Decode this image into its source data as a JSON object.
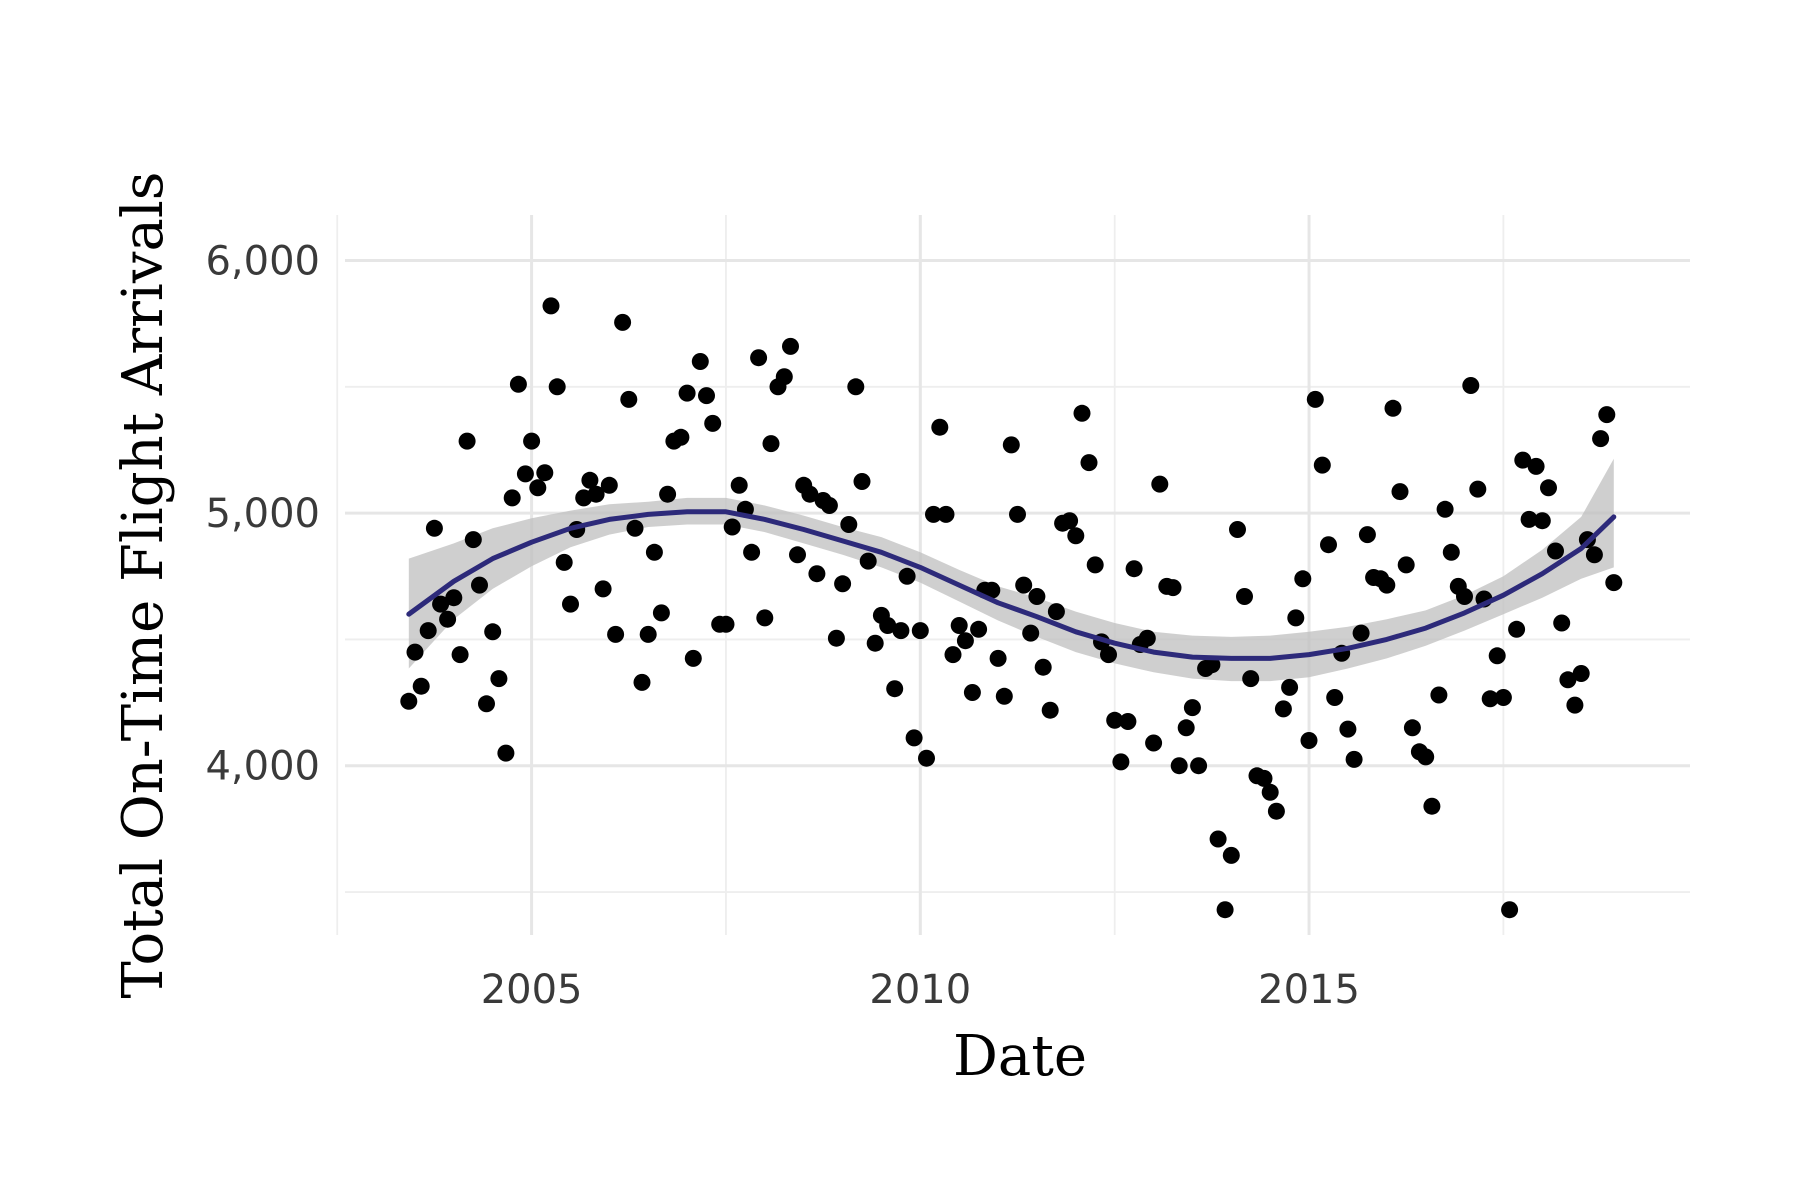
{
  "chart_data": {
    "type": "scatter",
    "xlabel": "Date",
    "ylabel": "Total On-Time Flight Arrivals",
    "x_ticks": [
      2005,
      2010,
      2015
    ],
    "y_ticks": [
      "4,000",
      "5,000",
      "6,000"
    ],
    "xlim": [
      2002.6,
      2019.9
    ],
    "ylim": [
      3330,
      6180
    ],
    "grid": true,
    "legend": "none",
    "colors": {
      "points": "#000000",
      "trend": "#2d2a7a",
      "band": "#bfbfbf"
    },
    "points": {
      "x": [
        2003.42,
        2003.5,
        2003.58,
        2003.67,
        2003.75,
        2003.83,
        2003.92,
        2004.0,
        2004.08,
        2004.17,
        2004.25,
        2004.33,
        2004.42,
        2004.5,
        2004.58,
        2004.67,
        2004.75,
        2004.83,
        2004.92,
        2005.0,
        2005.08,
        2005.17,
        2005.25,
        2005.33,
        2005.42,
        2005.5,
        2005.58,
        2005.67,
        2005.75,
        2005.83,
        2005.92,
        2006.0,
        2006.08,
        2006.17,
        2006.25,
        2006.33,
        2006.42,
        2006.5,
        2006.58,
        2006.67,
        2006.75,
        2006.83,
        2006.92,
        2007.0,
        2007.08,
        2007.17,
        2007.25,
        2007.33,
        2007.42,
        2007.5,
        2007.58,
        2007.67,
        2007.75,
        2007.83,
        2007.92,
        2008.0,
        2008.08,
        2008.17,
        2008.25,
        2008.33,
        2008.42,
        2008.5,
        2008.58,
        2008.67,
        2008.75,
        2008.83,
        2008.92,
        2009.0,
        2009.08,
        2009.17,
        2009.25,
        2009.33,
        2009.42,
        2009.5,
        2009.58,
        2009.67,
        2009.75,
        2009.83,
        2009.92,
        2010.0,
        2010.08,
        2010.17,
        2010.25,
        2010.33,
        2010.42,
        2010.5,
        2010.58,
        2010.67,
        2010.75,
        2010.83,
        2010.92,
        2011.0,
        2011.08,
        2011.17,
        2011.25,
        2011.33,
        2011.42,
        2011.5,
        2011.58,
        2011.67,
        2011.75,
        2011.83,
        2011.92,
        2012.0,
        2012.08,
        2012.17,
        2012.25,
        2012.33,
        2012.42,
        2012.5,
        2012.58,
        2012.67,
        2012.75,
        2012.83,
        2012.92,
        2013.0,
        2013.08,
        2013.17,
        2013.25,
        2013.33,
        2013.42,
        2013.5,
        2013.58,
        2013.67,
        2013.75,
        2013.83,
        2013.92,
        2014.0,
        2014.08,
        2014.17,
        2014.25,
        2014.33,
        2014.42,
        2014.5,
        2014.58,
        2014.67,
        2014.75,
        2014.83,
        2014.92,
        2015.0,
        2015.08,
        2015.17,
        2015.25,
        2015.33,
        2015.42,
        2015.5,
        2015.58,
        2015.67,
        2015.75,
        2015.83,
        2015.92,
        2016.0,
        2016.08,
        2016.17,
        2016.25,
        2016.33,
        2016.42,
        2016.5,
        2016.58,
        2016.67,
        2016.75,
        2016.83,
        2016.92,
        2017.0,
        2017.08,
        2017.17,
        2017.25,
        2017.33,
        2017.42,
        2017.5,
        2017.58,
        2017.67,
        2017.75,
        2017.83,
        2017.92,
        2018.0,
        2018.08,
        2018.17,
        2018.25,
        2018.33,
        2018.42,
        2018.5,
        2018.58,
        2018.67,
        2018.75,
        2018.83,
        2018.92
      ],
      "y": [
        4255,
        4450,
        4315,
        4535,
        4940,
        4640,
        4580,
        4665,
        4440,
        5285,
        4895,
        4715,
        4245,
        4530,
        4345,
        4050,
        5060,
        5510,
        5155,
        5285,
        5100,
        5160,
        5820,
        5500,
        4805,
        4640,
        4935,
        5060,
        5130,
        5075,
        4700,
        5110,
        4520,
        5755,
        5450,
        4940,
        4330,
        4520,
        4845,
        4605,
        5075,
        5285,
        5300,
        5475,
        4425,
        5600,
        5465,
        5355,
        4560,
        4560,
        4945,
        5110,
        5015,
        4845,
        5615,
        4585,
        5275,
        5500,
        5540,
        5660,
        4835,
        5110,
        5075,
        4760,
        5050,
        5030,
        4505,
        4720,
        4955,
        5500,
        5125,
        4810,
        4485,
        4595,
        4555,
        4305,
        4535,
        4750,
        4110,
        4535,
        4030,
        4995,
        5340,
        4995,
        4440,
        4555,
        4495,
        4290,
        4540,
        4695,
        4695,
        4425,
        4275,
        5270,
        4995,
        4715,
        4525,
        4670,
        4390,
        4220,
        4610,
        4960,
        4970,
        4910,
        5395,
        5200,
        4795,
        4490,
        4440,
        4180,
        4015,
        4175,
        4780,
        4480,
        4505,
        4090,
        5115,
        4710,
        4705,
        4000,
        4150,
        4230,
        4000,
        4385,
        4400,
        3710,
        3430,
        3645,
        4935,
        4670,
        4345,
        3960,
        3950,
        3895,
        3820,
        4225,
        4310,
        4585,
        4740,
        4100,
        5450,
        5190,
        4875,
        4270,
        4445,
        4145,
        4025,
        4525,
        4915,
        4745,
        4740,
        4715,
        5415,
        5085,
        4795,
        4150,
        4055,
        4035,
        3840,
        4280,
        5015,
        4845,
        4710,
        4670,
        5505,
        5095,
        4660,
        4265,
        4435,
        4270,
        3430,
        4540,
        5210,
        4975,
        5185,
        4970,
        5100,
        4850,
        4565,
        4340,
        4240,
        4365,
        4895,
        4835,
        5295,
        5390,
        4725
      ]
    },
    "trend_line": {
      "x": [
        2003.42,
        2004.0,
        2004.5,
        2005.0,
        2005.5,
        2006.0,
        2006.5,
        2007.0,
        2007.5,
        2008.0,
        2008.5,
        2009.0,
        2009.5,
        2010.0,
        2010.5,
        2011.0,
        2011.5,
        2012.0,
        2012.5,
        2013.0,
        2013.5,
        2014.0,
        2014.5,
        2015.0,
        2015.5,
        2016.0,
        2016.5,
        2017.0,
        2017.5,
        2018.0,
        2018.5,
        2018.92
      ],
      "y": [
        4600,
        4730,
        4820,
        4885,
        4940,
        4975,
        4995,
        5005,
        5005,
        4975,
        4935,
        4890,
        4845,
        4785,
        4715,
        4645,
        4590,
        4530,
        4485,
        4450,
        4430,
        4425,
        4425,
        4440,
        4465,
        4500,
        4545,
        4605,
        4675,
        4760,
        4860,
        4985
      ],
      "lower": [
        4385,
        4580,
        4700,
        4790,
        4865,
        4915,
        4945,
        4955,
        4955,
        4925,
        4880,
        4835,
        4785,
        4725,
        4650,
        4575,
        4510,
        4450,
        4405,
        4370,
        4345,
        4335,
        4335,
        4350,
        4385,
        4425,
        4475,
        4535,
        4600,
        4665,
        4740,
        4785
      ],
      "upper": [
        4820,
        4880,
        4940,
        4980,
        5010,
        5035,
        5045,
        5060,
        5060,
        5030,
        4990,
        4945,
        4905,
        4845,
        4775,
        4710,
        4665,
        4610,
        4565,
        4530,
        4515,
        4510,
        4515,
        4530,
        4550,
        4580,
        4615,
        4675,
        4750,
        4855,
        4985,
        5215
      ]
    }
  }
}
